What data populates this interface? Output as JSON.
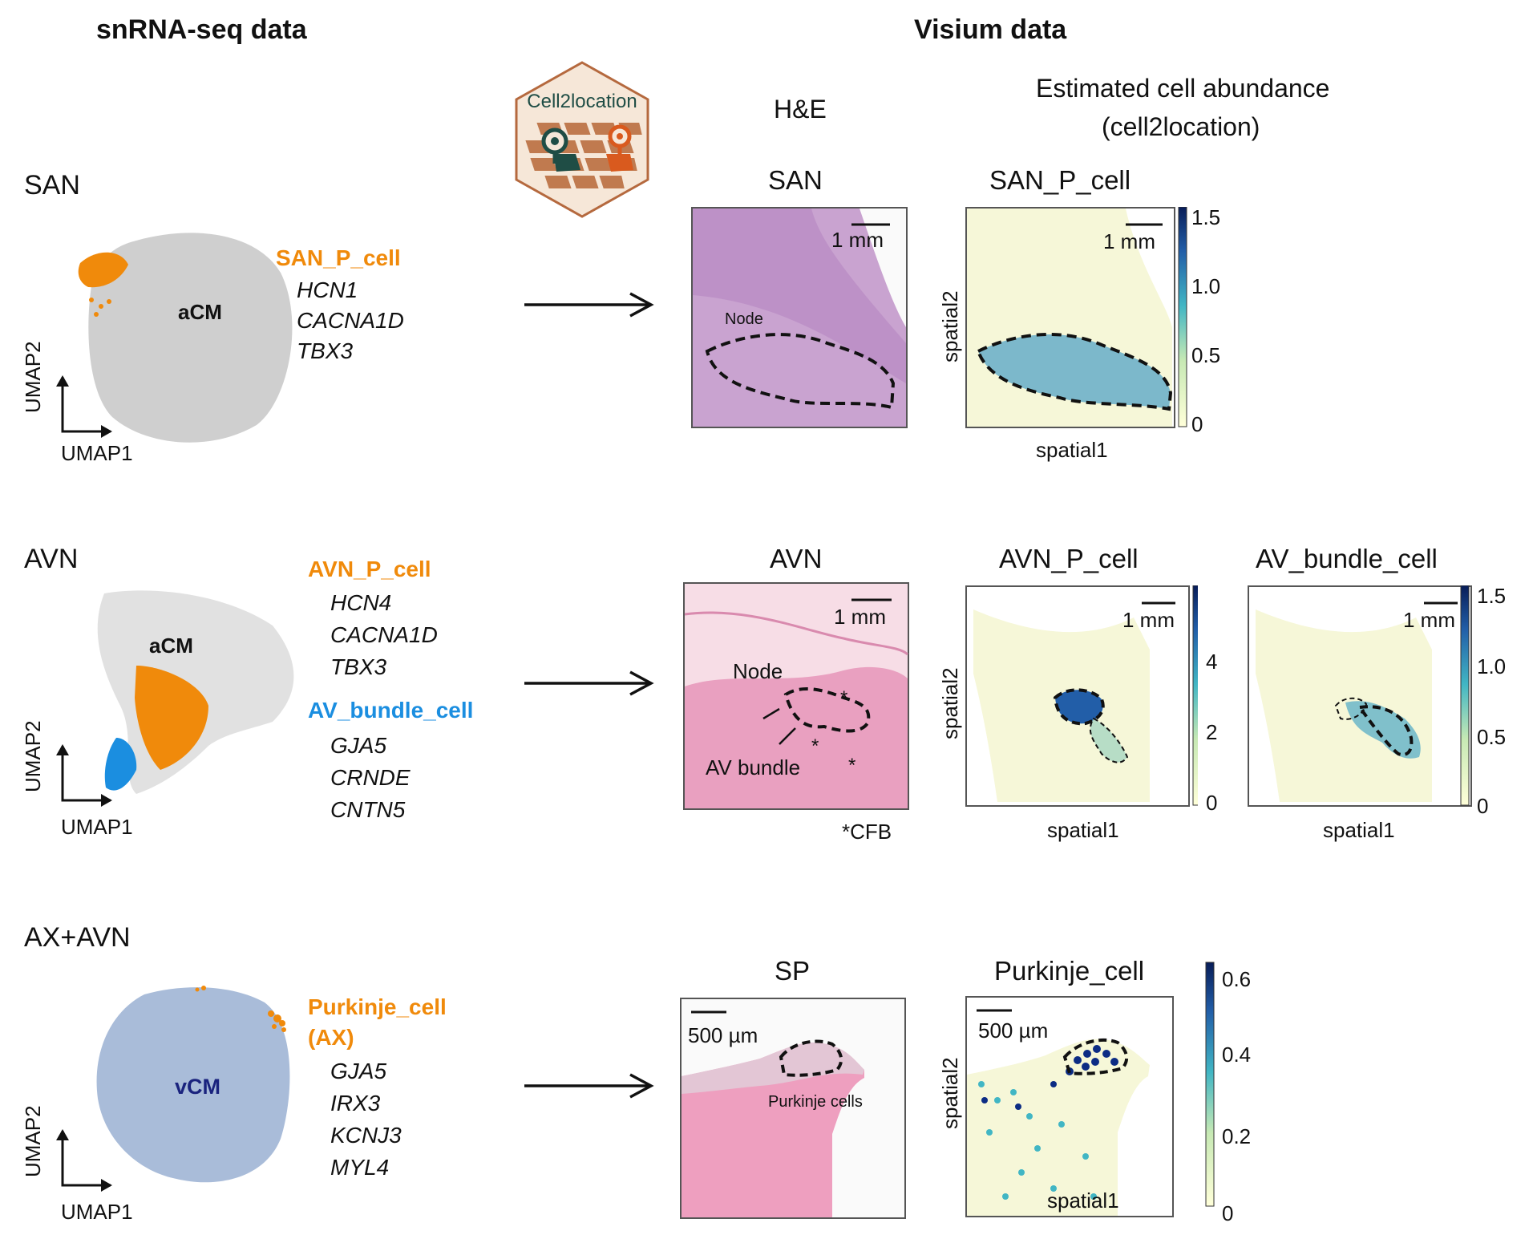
{
  "headers": {
    "left": "snRNA-seq data",
    "right": "Visium data"
  },
  "logo": {
    "text": "Cell2location"
  },
  "column_headers": {
    "he": "H&E",
    "abundance_line1": "Estimated cell abundance",
    "abundance_line2": "(cell2location)"
  },
  "axes": {
    "umap_x": "UMAP1",
    "umap_y": "UMAP2",
    "spatial_x": "spatial1",
    "spatial_y": "spatial2"
  },
  "rows": {
    "san": {
      "label": "SAN",
      "cluster": "aCM",
      "cell_type": "SAN_P_cell",
      "genes": [
        "HCN1",
        "CACNA1D",
        "TBX3"
      ],
      "he_title": "SAN",
      "scalebar": "1 mm",
      "region_label": "Node",
      "panel_title": "SAN_P_cell",
      "colorbar_ticks": [
        "1.5",
        "1.0",
        "0.5",
        "0"
      ]
    },
    "avn": {
      "label": "AVN",
      "cluster": "aCM",
      "cell_type_1": "AVN_P_cell",
      "genes_1": [
        "HCN4",
        "CACNA1D",
        "TBX3"
      ],
      "cell_type_2": "AV_bundle_cell",
      "genes_2": [
        "GJA5",
        "CRNDE",
        "CNTN5"
      ],
      "he_title": "AVN",
      "scalebar": "1 mm",
      "node_label": "Node",
      "bundle_label": "AV bundle",
      "footnote": "*CFB",
      "panel1_title": "AVN_P_cell",
      "panel1_ticks": [
        "4",
        "2",
        "0"
      ],
      "panel2_title": "AV_bundle_cell",
      "panel2_ticks": [
        "1.5",
        "1.0",
        "0.5",
        "0"
      ]
    },
    "ax": {
      "label": "AX+AVN",
      "cluster": "vCM",
      "cell_type_line1": "Purkinje_cell",
      "cell_type_line2": "(AX)",
      "genes": [
        "GJA5",
        "IRX3",
        "KCNJ3",
        "MYL4"
      ],
      "he_title": "SP",
      "scalebar": "500 µm",
      "region_label": "Purkinje cells",
      "panel_title": "Purkinje_cell",
      "colorbar_ticks": [
        "0.6",
        "0.4",
        "0.2",
        "0"
      ]
    }
  },
  "colors": {
    "orange": "#f08a0b",
    "blue": "#1b8ee0",
    "navy": "#1a237e",
    "grey_cells": "#cfcfcf",
    "vcm": "#a9bcd9"
  }
}
